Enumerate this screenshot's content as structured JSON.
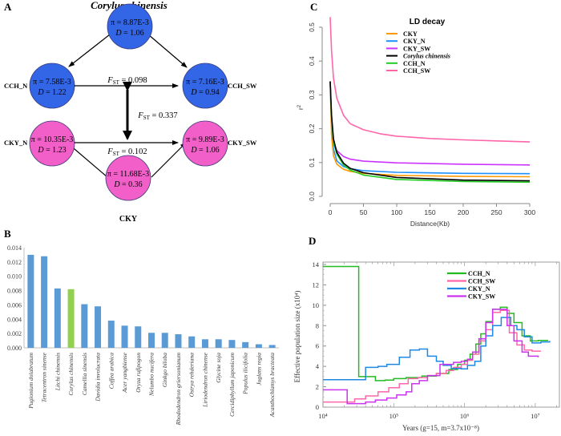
{
  "panels": {
    "A": "A",
    "B": "B",
    "C": "C",
    "D": "D"
  },
  "diagram": {
    "title": "Corylus chinensis",
    "nodes": [
      {
        "id": "top",
        "label": "",
        "pi": "π = 8.87E-3",
        "d_prefix": "D",
        "d_value": " = 1.06",
        "color": "#3366e6"
      },
      {
        "id": "cch_n",
        "label": "CCH_N",
        "pi": "π = 7.58E-3",
        "d_prefix": "D",
        "d_value": " = 1.22",
        "color": "#3366e6"
      },
      {
        "id": "cch_sw",
        "label": "CCH_SW",
        "pi": "π = 7.16E-3",
        "d_prefix": "D",
        "d_value": " = 0.94",
        "color": "#3366e6"
      },
      {
        "id": "cky_n",
        "label": "CKY_N",
        "pi": "π = 10.35E-3",
        "d_prefix": "D",
        "d_value": " = 1.23",
        "color": "#f25fc8"
      },
      {
        "id": "cky_sw",
        "label": "CKY_SW",
        "pi": "π = 9.89E-3",
        "d_prefix": "D",
        "d_value": " = 1.06",
        "color": "#f25fc8"
      },
      {
        "id": "cky",
        "label": "CKY",
        "pi": "π = 11.68E-3",
        "d_prefix": "D",
        "d_value": " = 0.36",
        "color": "#f25fc8"
      }
    ],
    "fst": [
      {
        "between": "CCH_N–CCH_SW",
        "prefix": "F",
        "sub": "ST",
        "value": " = 0.098"
      },
      {
        "between": "CCH–CKY",
        "prefix": "F",
        "sub": "ST",
        "value": " = 0.337"
      },
      {
        "between": "CKY_N–CKY_SW",
        "prefix": "F",
        "sub": "ST",
        "value": " = 0.102"
      }
    ]
  },
  "chart_data": [
    {
      "id": "B",
      "type": "bar",
      "title": "",
      "xlabel": "",
      "ylabel": "",
      "ylim": [
        0,
        0.014
      ],
      "yticks": [
        "0.000",
        "0.002",
        "0.004",
        "0.006",
        "0.008",
        "0.010",
        "0.012",
        "0.014"
      ],
      "categories": [
        "Pugionium dolabratum",
        "Tetracentron sinense",
        "Litchi chinensis",
        "Corylus chinensis",
        "Camellia sinensis",
        "Davidia involucrata",
        "Coffea arabica",
        "Acer yangbiense",
        "Oryza rufipogon",
        "Nelumbo nucifera",
        "Ginkgo biloba",
        "Rhododendron griersonianum",
        "Ostrya rehderiana",
        "Liriodendron chinense",
        "Glycine soja",
        "Cercidiphyllum japonicum",
        "Populus ilicifolia",
        "Juglans regia",
        "Acanthochlamys bracteata"
      ],
      "values": [
        0.013,
        0.0128,
        0.0083,
        0.0082,
        0.0061,
        0.0058,
        0.0038,
        0.0031,
        0.003,
        0.0021,
        0.0021,
        0.0019,
        0.0016,
        0.0012,
        0.0012,
        0.0011,
        0.0008,
        0.0005,
        0.0004
      ],
      "highlight": "Corylus chinensis",
      "colors": {
        "default": "#5b9bd5",
        "highlight": "#92d050"
      }
    },
    {
      "id": "C",
      "type": "line",
      "title": "LD decay",
      "xlabel": "Distance(Kb)",
      "ylabel": "r²",
      "xlim": [
        0,
        300
      ],
      "ylim": [
        0,
        0.5
      ],
      "xticks": [
        "0",
        "50",
        "100",
        "150",
        "200",
        "250",
        "300"
      ],
      "yticks": [
        "0.0",
        "0.1",
        "0.2",
        "0.3",
        "0.4",
        "0.5"
      ],
      "legend_position": "top-center",
      "series": [
        {
          "name": "CKY",
          "color": "#ff9900",
          "italic": false,
          "x": [
            0,
            2,
            5,
            10,
            20,
            30,
            50,
            100,
            200,
            300
          ],
          "y": [
            0.34,
            0.18,
            0.12,
            0.095,
            0.08,
            0.074,
            0.068,
            0.062,
            0.059,
            0.058
          ]
        },
        {
          "name": "CKY_N",
          "color": "#1e90ff",
          "italic": false,
          "x": [
            0,
            2,
            5,
            10,
            20,
            30,
            50,
            100,
            200,
            300
          ],
          "y": [
            0.34,
            0.2,
            0.14,
            0.105,
            0.088,
            0.082,
            0.076,
            0.071,
            0.068,
            0.067
          ]
        },
        {
          "name": "CKY_SW",
          "color": "#cc33ff",
          "italic": false,
          "x": [
            0,
            2,
            5,
            10,
            20,
            30,
            50,
            100,
            200,
            300
          ],
          "y": [
            0.34,
            0.22,
            0.16,
            0.135,
            0.118,
            0.11,
            0.104,
            0.099,
            0.095,
            0.093
          ]
        },
        {
          "name": "Corylus chinensis",
          "color": "#000000",
          "italic": true,
          "x": [
            0,
            2,
            5,
            10,
            20,
            30,
            50,
            100,
            200,
            300
          ],
          "y": [
            0.34,
            0.24,
            0.17,
            0.13,
            0.098,
            0.083,
            0.07,
            0.056,
            0.048,
            0.046
          ]
        },
        {
          "name": "CCH_N",
          "color": "#22cc22",
          "italic": false,
          "x": [
            0,
            2,
            5,
            10,
            20,
            30,
            50,
            100,
            200,
            300
          ],
          "y": [
            0.34,
            0.23,
            0.16,
            0.125,
            0.093,
            0.078,
            0.063,
            0.05,
            0.044,
            0.042
          ]
        },
        {
          "name": "CCH_SW",
          "color": "#ff66aa",
          "italic": false,
          "x": [
            0,
            2,
            5,
            10,
            20,
            30,
            50,
            75,
            100,
            150,
            200,
            250,
            300
          ],
          "y": [
            0.53,
            0.43,
            0.35,
            0.29,
            0.24,
            0.215,
            0.197,
            0.185,
            0.178,
            0.171,
            0.167,
            0.164,
            0.161
          ]
        }
      ]
    },
    {
      "id": "D",
      "type": "line",
      "title": "",
      "xlabel": "Years (g=15, m=3.7x10⁻⁸)",
      "ylabel": "Effective population size (x10⁴)",
      "xscale": "log",
      "xlim": [
        10000,
        20000000
      ],
      "ylim": [
        0,
        14
      ],
      "xticks": [
        "10⁴",
        "10⁵",
        "10⁶",
        "10⁷"
      ],
      "yticks": [
        "0",
        "2",
        "4",
        "6",
        "8",
        "10",
        "12",
        "14"
      ],
      "legend_position": "top-right",
      "series": [
        {
          "name": "CCH_N",
          "color": "#22bb22",
          "step": true,
          "x": [
            10000,
            32000,
            55000,
            75000,
            100000,
            150000,
            250000,
            400000,
            600000,
            800000,
            1000000,
            1200000,
            1450000,
            1700000,
            2000000,
            2500000,
            3200000,
            4000000,
            5000000,
            6500000,
            8500000,
            11000000,
            15000000
          ],
          "y": [
            13.8,
            3.0,
            2.6,
            2.65,
            2.8,
            2.9,
            3.05,
            3.3,
            3.7,
            4.2,
            4.6,
            5.2,
            6.2,
            7.2,
            8.4,
            9.6,
            9.8,
            9.2,
            8.3,
            7.0,
            6.5,
            6.55,
            6.5
          ]
        },
        {
          "name": "CCH_SW",
          "color": "#ff66aa",
          "step": true,
          "x": [
            10000,
            22000,
            28000,
            40000,
            60000,
            85000,
            120000,
            160000,
            220000,
            300000,
            400000,
            550000,
            700000,
            900000,
            1100000,
            1300000,
            1600000,
            2000000,
            2500000,
            3200000,
            4300000,
            5500000,
            7000000,
            9000000,
            12000000
          ],
          "y": [
            0.5,
            0.5,
            0.8,
            1.1,
            1.5,
            1.9,
            2.3,
            2.8,
            2.9,
            3.1,
            3.3,
            3.6,
            3.9,
            4.2,
            4.6,
            5.2,
            6.5,
            7.6,
            9.3,
            9.5,
            7.3,
            6.1,
            5.6,
            5.5,
            5.5
          ]
        },
        {
          "name": "CKY_N",
          "color": "#1e88e5",
          "step": true,
          "x": [
            10000,
            40000,
            60000,
            80000,
            120000,
            170000,
            230000,
            300000,
            400000,
            500000,
            650000,
            900000,
            1100000,
            1400000,
            1700000,
            2000000,
            2500000,
            3300000,
            4500000,
            5500000,
            7000000,
            9000000,
            12000000,
            16000000
          ],
          "y": [
            2.7,
            3.9,
            4.0,
            4.2,
            4.9,
            5.6,
            5.7,
            5.0,
            4.5,
            4.1,
            3.8,
            3.75,
            4.1,
            4.5,
            6.0,
            7.0,
            8.0,
            8.8,
            8.0,
            7.6,
            6.9,
            6.3,
            6.4,
            6.5
          ]
        },
        {
          "name": "CKY_SW",
          "color": "#cc33ee",
          "step": true,
          "x": [
            10000,
            22000,
            40000,
            55000,
            80000,
            110000,
            150000,
            180000,
            230000,
            300000,
            450000,
            700000,
            900000,
            1100000,
            1300000,
            1600000,
            2000000,
            2500000,
            3300000,
            4000000,
            5000000,
            6500000,
            8000000,
            11000000
          ],
          "y": [
            1.7,
            0.35,
            0.5,
            0.7,
            0.9,
            1.2,
            1.5,
            2.3,
            2.6,
            3.1,
            4.2,
            4.4,
            4.5,
            4.7,
            5.4,
            6.7,
            8.3,
            9.6,
            9.6,
            8.0,
            6.5,
            5.4,
            5.0,
            4.9
          ]
        }
      ]
    }
  ]
}
